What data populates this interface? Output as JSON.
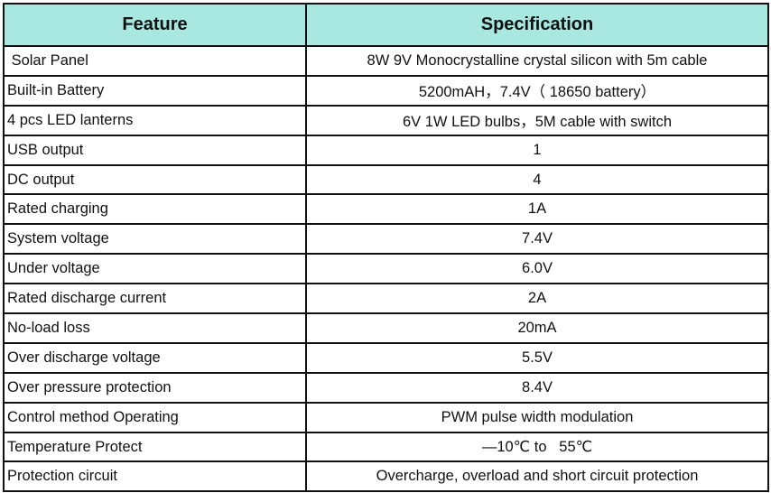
{
  "table": {
    "headers": [
      "Feature",
      "Specification"
    ],
    "rows": [
      {
        "feature": " Solar Panel",
        "spec": "8W 9V Monocrystalline crystal silicon with 5m cable"
      },
      {
        "feature": "Built-in Battery",
        "spec": "5200mAH，7.4V（ 18650 battery）"
      },
      {
        "feature": "4 pcs LED lanterns",
        "spec": "6V 1W LED bulbs，5M cable with switch"
      },
      {
        "feature": "USB output",
        "spec": "1"
      },
      {
        "feature": "DC output",
        "spec": "4"
      },
      {
        "feature": "Rated charging",
        "spec": "1A"
      },
      {
        "feature": "System voltage",
        "spec": "7.4V"
      },
      {
        "feature": "Under voltage",
        "spec": "6.0V"
      },
      {
        "feature": "Rated discharge current",
        "spec": "2A"
      },
      {
        "feature": "No-load loss",
        "spec": "20mA"
      },
      {
        "feature": "Over discharge voltage",
        "spec": "5.5V"
      },
      {
        "feature": "Over pressure protection",
        "spec": "8.4V"
      },
      {
        "feature": "Control method Operating",
        "spec": "PWM pulse width modulation"
      },
      {
        "feature": "Temperature Protect",
        "spec": "—10℃ to   55℃"
      },
      {
        "feature": "Protection circuit",
        "spec": "Overcharge, overload and short circuit protection"
      }
    ]
  },
  "colors": {
    "header_bg": "#a8e8e0",
    "border": "#111111"
  }
}
